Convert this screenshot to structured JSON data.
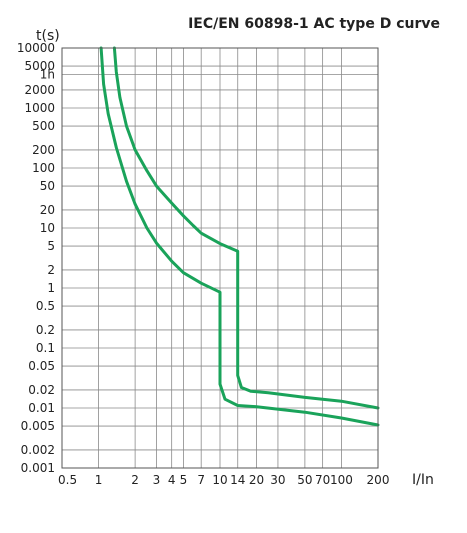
{
  "chart_data": {
    "type": "line",
    "title": "IEC/EN 60898-1 AC type D curve",
    "ylabel": "t(s)",
    "xlabel": "I/In",
    "x_scale": "log",
    "y_scale": "log",
    "xlim": [
      0.5,
      200
    ],
    "ylim": [
      0.001,
      10000
    ],
    "grid": true,
    "curve_color": "#1aa35a",
    "x_ticks": [
      {
        "value": 0.5,
        "label": "0.5"
      },
      {
        "value": 1,
        "label": "1"
      },
      {
        "value": 2,
        "label": "2"
      },
      {
        "value": 3,
        "label": "3"
      },
      {
        "value": 4,
        "label": "4"
      },
      {
        "value": 5,
        "label": "5"
      },
      {
        "value": 7,
        "label": "7"
      },
      {
        "value": 10,
        "label": "10"
      },
      {
        "value": 14,
        "label": "14"
      },
      {
        "value": 20,
        "label": "20"
      },
      {
        "value": 30,
        "label": "30"
      },
      {
        "value": 50,
        "label": "50"
      },
      {
        "value": 70,
        "label": "70"
      },
      {
        "value": 100,
        "label": "100"
      },
      {
        "value": 200,
        "label": "200"
      }
    ],
    "y_ticks": [
      {
        "value": 10000,
        "label": "10000"
      },
      {
        "value": 5000,
        "label": "5000"
      },
      {
        "value": 3600,
        "label": "1h"
      },
      {
        "value": 2000,
        "label": "2000"
      },
      {
        "value": 1000,
        "label": "1000"
      },
      {
        "value": 500,
        "label": "500"
      },
      {
        "value": 200,
        "label": "200"
      },
      {
        "value": 100,
        "label": "100"
      },
      {
        "value": 50,
        "label": "50"
      },
      {
        "value": 20,
        "label": "20"
      },
      {
        "value": 10,
        "label": "10"
      },
      {
        "value": 5,
        "label": "5"
      },
      {
        "value": 2,
        "label": "2"
      },
      {
        "value": 1,
        "label": "1"
      },
      {
        "value": 0.5,
        "label": "0.5"
      },
      {
        "value": 0.2,
        "label": "0.2"
      },
      {
        "value": 0.1,
        "label": "0.1"
      },
      {
        "value": 0.05,
        "label": "0.05"
      },
      {
        "value": 0.02,
        "label": "0.02"
      },
      {
        "value": 0.01,
        "label": "0.01"
      },
      {
        "value": 0.005,
        "label": "0.005"
      },
      {
        "value": 0.002,
        "label": "0.002"
      },
      {
        "value": 0.001,
        "label": "0.001"
      }
    ],
    "series": [
      {
        "points": [
          [
            1.35,
            10000
          ],
          [
            1.4,
            4000
          ],
          [
            1.5,
            1500
          ],
          [
            1.7,
            500
          ],
          [
            2.0,
            200
          ],
          [
            2.5,
            90
          ],
          [
            3,
            50
          ],
          [
            4,
            26
          ],
          [
            5,
            16
          ],
          [
            6,
            11
          ],
          [
            7,
            8.2
          ],
          [
            10,
            5.5
          ],
          [
            12,
            4.7
          ],
          [
            14,
            4.1
          ],
          [
            14,
            0.035
          ],
          [
            15,
            0.022
          ],
          [
            18,
            0.019
          ],
          [
            25,
            0.018
          ],
          [
            50,
            0.015
          ],
          [
            100,
            0.013
          ],
          [
            200,
            0.01
          ]
        ]
      },
      {
        "points": [
          [
            1.05,
            10000
          ],
          [
            1.1,
            2500
          ],
          [
            1.2,
            800
          ],
          [
            1.4,
            220
          ],
          [
            1.7,
            60
          ],
          [
            2,
            25
          ],
          [
            2.5,
            10
          ],
          [
            3,
            5.6
          ],
          [
            4,
            2.8
          ],
          [
            5,
            1.8
          ],
          [
            7,
            1.2
          ],
          [
            10,
            0.85
          ],
          [
            10,
            0.025
          ],
          [
            11,
            0.014
          ],
          [
            14,
            0.011
          ],
          [
            20,
            0.0105
          ],
          [
            50,
            0.0085
          ],
          [
            100,
            0.0068
          ],
          [
            200,
            0.0052
          ]
        ]
      }
    ]
  }
}
